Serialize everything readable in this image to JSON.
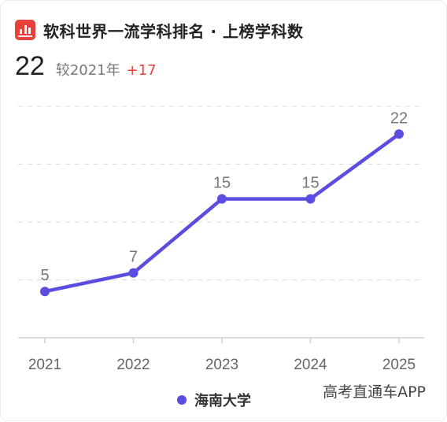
{
  "header": {
    "title": "软科世界一流学科排名 · 上榜学科数",
    "logo_icon": "ranking-logo-icon"
  },
  "summary": {
    "value": "22",
    "comparison_label": "较2021年",
    "delta": "+17"
  },
  "watermark": "高考直通车APP",
  "colors": {
    "series": "#5a4de0",
    "delta": "#e8413b",
    "logo": "#e8413b"
  },
  "chart_data": {
    "type": "line",
    "categories": [
      "2021",
      "2022",
      "2023",
      "2024",
      "2025"
    ],
    "series": [
      {
        "name": "海南大学",
        "values": [
          5,
          7,
          15,
          15,
          22
        ]
      }
    ],
    "ylim": [
      0,
      25
    ],
    "grid": true,
    "legend": "bottom-center",
    "data_labels": true
  }
}
